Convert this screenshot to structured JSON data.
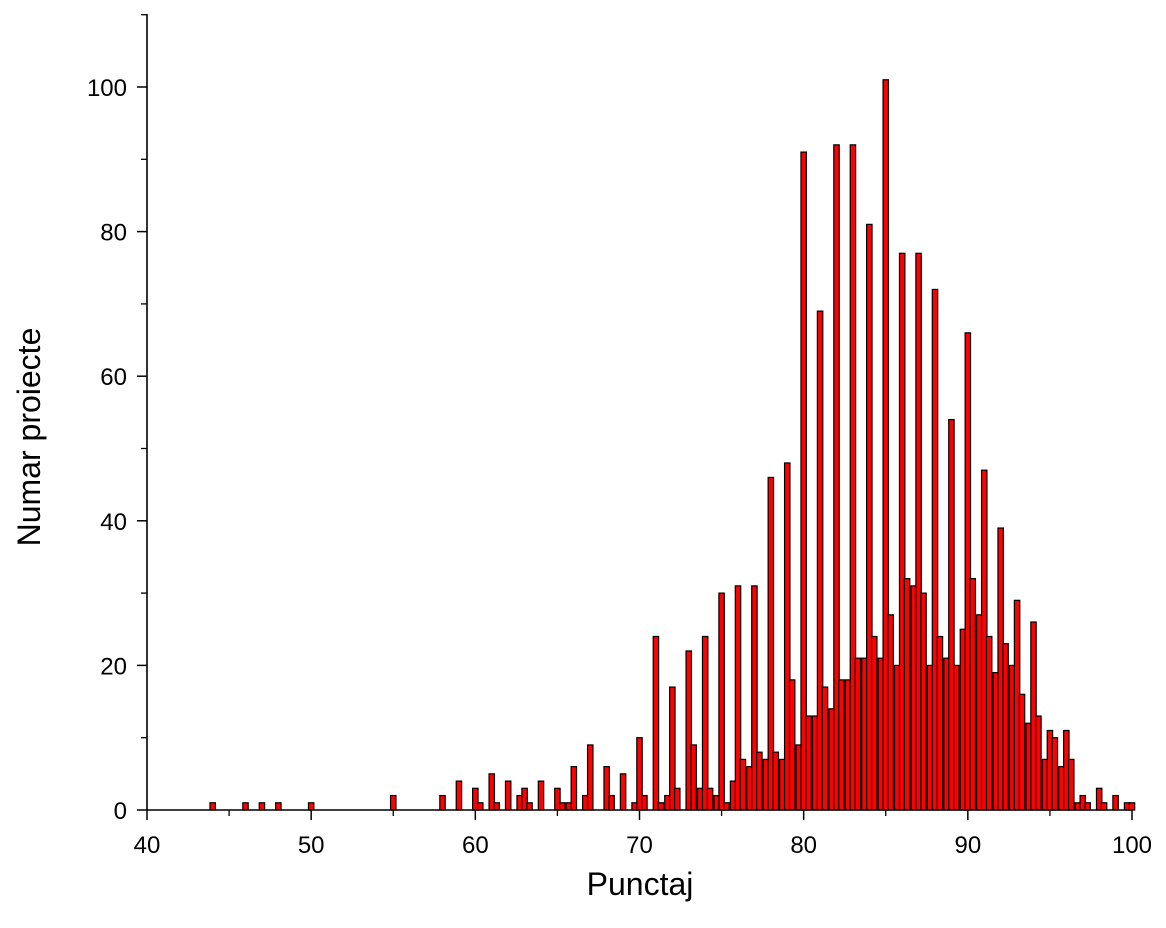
{
  "chart_data": {
    "type": "bar",
    "title": "",
    "xlabel": "Punctaj",
    "ylabel": "Numar proiecte",
    "xlim": [
      40,
      100
    ],
    "ylim": [
      0,
      110
    ],
    "x_ticks": [
      40,
      50,
      60,
      70,
      80,
      90,
      100
    ],
    "y_ticks": [
      0,
      20,
      40,
      60,
      80,
      100
    ],
    "grid": false,
    "legend": "none",
    "bar_color": "#ff0000",
    "bar_edge_color": "#000000",
    "points": [
      [
        44,
        1
      ],
      [
        46,
        1
      ],
      [
        47,
        1
      ],
      [
        48,
        1
      ],
      [
        50,
        1
      ],
      [
        55,
        2
      ],
      [
        58,
        2
      ],
      [
        59,
        4
      ],
      [
        60,
        3
      ],
      [
        60.3,
        1
      ],
      [
        61,
        5
      ],
      [
        61.3,
        1
      ],
      [
        62,
        4
      ],
      [
        62.7,
        2
      ],
      [
        63,
        3
      ],
      [
        63.3,
        1
      ],
      [
        64,
        4
      ],
      [
        65,
        3
      ],
      [
        65.3,
        1
      ],
      [
        65.7,
        1
      ],
      [
        66,
        6
      ],
      [
        66.7,
        2
      ],
      [
        67,
        9
      ],
      [
        68,
        6
      ],
      [
        68.3,
        2
      ],
      [
        69,
        5
      ],
      [
        69.7,
        1
      ],
      [
        70,
        10
      ],
      [
        70.3,
        2
      ],
      [
        71,
        24
      ],
      [
        71.3,
        1
      ],
      [
        71.7,
        2
      ],
      [
        72,
        17
      ],
      [
        72.3,
        3
      ],
      [
        73,
        22
      ],
      [
        73.3,
        9
      ],
      [
        73.7,
        3
      ],
      [
        74,
        24
      ],
      [
        74.3,
        3
      ],
      [
        74.7,
        2
      ],
      [
        75,
        30
      ],
      [
        75.3,
        1
      ],
      [
        75.7,
        4
      ],
      [
        76,
        31
      ],
      [
        76.3,
        7
      ],
      [
        76.7,
        6
      ],
      [
        77,
        31
      ],
      [
        77.3,
        8
      ],
      [
        77.7,
        7
      ],
      [
        78,
        46
      ],
      [
        78.3,
        8
      ],
      [
        78.7,
        7
      ],
      [
        79,
        48
      ],
      [
        79.3,
        18
      ],
      [
        79.7,
        9
      ],
      [
        80,
        91
      ],
      [
        80.3,
        13
      ],
      [
        80.7,
        13
      ],
      [
        81,
        69
      ],
      [
        81.3,
        17
      ],
      [
        81.7,
        14
      ],
      [
        82,
        92
      ],
      [
        82.3,
        18
      ],
      [
        82.7,
        18
      ],
      [
        83,
        92
      ],
      [
        83.3,
        21
      ],
      [
        83.7,
        21
      ],
      [
        84,
        81
      ],
      [
        84.3,
        24
      ],
      [
        84.7,
        21
      ],
      [
        85,
        101
      ],
      [
        85.3,
        27
      ],
      [
        85.7,
        20
      ],
      [
        86,
        77
      ],
      [
        86.3,
        32
      ],
      [
        86.7,
        31
      ],
      [
        87,
        77
      ],
      [
        87.3,
        30
      ],
      [
        87.7,
        20
      ],
      [
        88,
        72
      ],
      [
        88.3,
        24
      ],
      [
        88.7,
        21
      ],
      [
        89,
        54
      ],
      [
        89.3,
        20
      ],
      [
        89.7,
        25
      ],
      [
        90,
        66
      ],
      [
        90.3,
        32
      ],
      [
        90.7,
        27
      ],
      [
        91,
        47
      ],
      [
        91.3,
        24
      ],
      [
        91.7,
        19
      ],
      [
        92,
        39
      ],
      [
        92.3,
        23
      ],
      [
        92.7,
        20
      ],
      [
        93,
        29
      ],
      [
        93.3,
        16
      ],
      [
        93.7,
        12
      ],
      [
        94,
        26
      ],
      [
        94.3,
        13
      ],
      [
        94.7,
        7
      ],
      [
        95,
        11
      ],
      [
        95.3,
        10
      ],
      [
        95.7,
        6
      ],
      [
        96,
        11
      ],
      [
        96.3,
        7
      ],
      [
        96.7,
        1
      ],
      [
        97,
        2
      ],
      [
        97.3,
        1
      ],
      [
        98,
        3
      ],
      [
        98.3,
        1
      ],
      [
        99,
        2
      ],
      [
        99.7,
        1
      ],
      [
        100,
        1
      ]
    ]
  }
}
